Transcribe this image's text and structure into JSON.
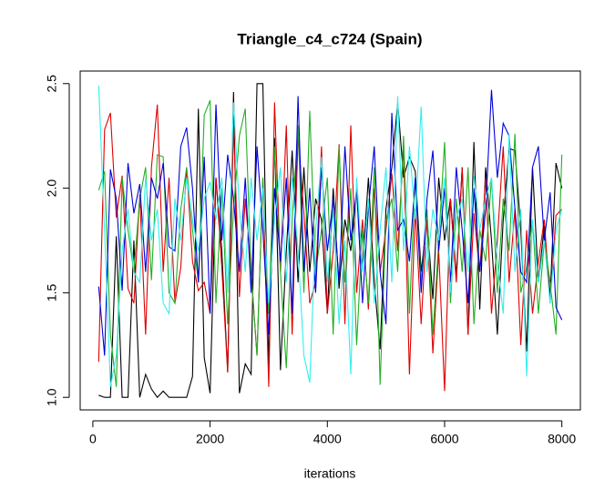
{
  "chart_data": {
    "type": "line",
    "title": "Triangle_c4_c724 (Spain)",
    "x_label": "iterations",
    "x": [
      100,
      200,
      300,
      400,
      500,
      600,
      700,
      800,
      900,
      1000,
      1100,
      1200,
      1300,
      1400,
      1500,
      1600,
      1700,
      1800,
      1900,
      2000,
      2100,
      2200,
      2300,
      2400,
      2500,
      2600,
      2700,
      2800,
      2900,
      3000,
      3100,
      3200,
      3300,
      3400,
      3500,
      3600,
      3700,
      3800,
      3900,
      4000,
      4100,
      4200,
      4300,
      4400,
      4500,
      4600,
      4700,
      4800,
      4900,
      5000,
      5100,
      5200,
      5300,
      5400,
      5500,
      5600,
      5700,
      5800,
      5900,
      6000,
      6100,
      6200,
      6300,
      6400,
      6500,
      6600,
      6700,
      6800,
      6900,
      7000,
      7100,
      7200,
      7300,
      7400,
      7500,
      7600,
      7700,
      7800,
      7900,
      8000
    ],
    "series": [
      {
        "color": "#000000",
        "values": [
          1.01,
          1.0,
          1.0,
          1.77,
          1.0,
          1.0,
          1.75,
          1.0,
          1.11,
          1.04,
          1.0,
          1.03,
          1.0,
          1.0,
          1.0,
          1.0,
          1.1,
          2.38,
          1.19,
          1.02,
          2.05,
          1.7,
          1.12,
          2.46,
          1.02,
          1.16,
          1.11,
          2.5,
          2.5,
          1.15,
          2.24,
          1.13,
          1.7,
          2.18,
          1.55,
          2.1,
          1.6,
          1.95,
          1.85,
          1.4,
          2.0,
          1.52,
          1.85,
          1.7,
          1.98,
          1.62,
          2.05,
          1.55,
          1.23,
          1.9,
          2.1,
          2.41,
          2.05,
          2.15,
          2.08,
          1.6,
          1.85,
          1.47,
          2.05,
          1.75,
          1.95,
          1.58,
          2.1,
          1.3,
          2.22,
          1.42,
          2.1,
          1.75,
          1.3,
          1.85,
          2.19,
          2.18,
          1.8,
          1.22,
          2.1,
          1.55,
          1.82,
          1.48,
          2.12,
          2.0
        ]
      },
      {
        "color": "#df0000",
        "values": [
          1.17,
          2.28,
          2.36,
          1.86,
          2.06,
          1.52,
          1.45,
          1.97,
          1.3,
          2.1,
          2.4,
          1.6,
          2.05,
          1.45,
          1.62,
          2.1,
          1.65,
          1.51,
          1.55,
          1.4,
          2.05,
          1.62,
          1.12,
          2.3,
          1.48,
          1.95,
          1.6,
          1.2,
          2.05,
          1.05,
          2.41,
          1.6,
          2.3,
          1.3,
          2.25,
          1.88,
          1.45,
          1.55,
          2.2,
          1.4,
          1.7,
          2.21,
          1.35,
          2.3,
          1.5,
          1.85,
          1.42,
          2.0,
          1.6,
          1.8,
          2.07,
          1.7,
          2.2,
          1.11,
          1.9,
          1.35,
          1.85,
          1.21,
          1.7,
          1.03,
          1.95,
          1.55,
          2.1,
          1.3,
          1.88,
          1.6,
          2.05,
          1.4,
          1.75,
          2.2,
          1.55,
          1.9,
          1.25,
          1.8,
          1.4,
          1.65,
          1.85,
          1.45,
          1.87,
          1.9
        ]
      },
      {
        "color": "#22b022",
        "values": [
          1.99,
          2.08,
          1.3,
          1.05,
          2.05,
          1.8,
          1.6,
          1.95,
          2.1,
          1.56,
          2.16,
          2.15,
          1.5,
          1.45,
          1.9,
          2.1,
          1.8,
          1.55,
          2.35,
          2.42,
          1.45,
          2.0,
          1.35,
          1.9,
          2.25,
          2.38,
          1.6,
          1.2,
          2.05,
          1.4,
          2.2,
          1.6,
          1.14,
          1.85,
          2.3,
          1.5,
          2.37,
          1.6,
          1.8,
          2.05,
          1.3,
          2.2,
          1.55,
          2.0,
          1.25,
          1.8,
          1.45,
          2.1,
          1.06,
          1.85,
          1.95,
          1.6,
          2.25,
          1.4,
          2.05,
          1.55,
          1.9,
          1.3,
          1.75,
          2.22,
          1.45,
          1.95,
          1.6,
          2.1,
          1.35,
          1.8,
          1.65,
          2.05,
          1.5,
          1.95,
          1.7,
          2.26,
          1.5,
          1.62,
          1.85,
          1.4,
          1.75,
          1.55,
          1.3,
          2.16
        ]
      },
      {
        "color": "#0000dd",
        "values": [
          1.53,
          1.2,
          2.09,
          1.95,
          1.51,
          2.12,
          1.88,
          2.02,
          1.6,
          2.05,
          1.95,
          2.12,
          1.72,
          1.7,
          2.2,
          2.29,
          2.0,
          1.55,
          2.15,
          1.4,
          2.4,
          1.75,
          2.16,
          1.95,
          1.6,
          2.05,
          1.5,
          2.2,
          1.8,
          1.3,
          2.0,
          1.65,
          2.05,
          1.4,
          2.44,
          1.6,
          2.0,
          1.5,
          2.1,
          1.7,
          1.95,
          1.55,
          2.2,
          1.75,
          2.0,
          1.45,
          1.9,
          2.2,
          1.6,
          1.35,
          2.36,
          1.8,
          1.85,
          1.65,
          2.05,
          1.5,
          1.95,
          2.18,
          1.7,
          2.0,
          1.55,
          2.1,
          1.8,
          1.45,
          2.0,
          1.6,
          1.9,
          2.47,
          2.05,
          2.31,
          2.25,
          1.9,
          1.6,
          1.55,
          2.1,
          2.2,
          1.75,
          1.98,
          1.43,
          1.37
        ]
      },
      {
        "color": "#33eeee",
        "values": [
          2.49,
          1.8,
          1.05,
          1.2,
          1.7,
          1.9,
          1.6,
          1.55,
          2.05,
          1.75,
          1.9,
          1.45,
          1.4,
          1.95,
          1.75,
          2.05,
          1.85,
          1.7,
          1.95,
          2.03,
          1.85,
          2.05,
          1.5,
          2.41,
          1.9,
          1.6,
          2.05,
          1.75,
          2.0,
          1.45,
          1.85,
          2.1,
          1.55,
          2.05,
          1.7,
          1.2,
          1.07,
          1.8,
          2.15,
          1.55,
          1.9,
          1.35,
          1.75,
          1.11,
          2.05,
          1.6,
          1.95,
          1.45,
          1.8,
          2.1,
          1.55,
          2.44,
          1.7,
          2.2,
          1.85,
          2.39,
          1.6,
          1.9,
          1.75,
          2.05,
          1.5,
          1.85,
          1.95,
          1.6,
          2.06,
          1.8,
          1.95,
          2.05,
          1.65,
          1.4,
          2.26,
          1.6,
          1.9,
          1.1,
          1.85,
          1.55,
          1.75,
          1.45,
          1.8,
          1.9
        ]
      }
    ],
    "xlim": [
      -216,
      8316
    ],
    "xticks": [
      0,
      2000,
      4000,
      6000,
      8000
    ],
    "ylim": [
      0.94,
      2.56
    ],
    "yticks": [
      {
        "value": 1,
        "label": "1.0"
      },
      1.5,
      {
        "value": 2,
        "label": "2.0"
      },
      2.5
    ]
  }
}
